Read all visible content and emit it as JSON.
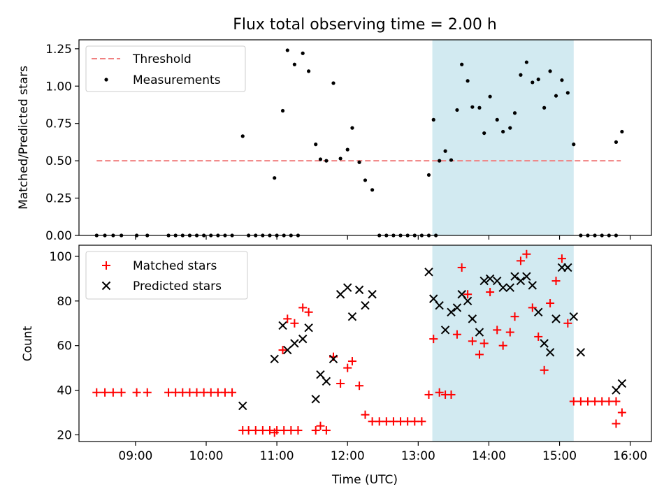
{
  "chart_data": [
    {
      "type": "scatter",
      "title": "Flux total observing time = 2.00 h",
      "xlabel": "",
      "ylabel": "Matched/Predicted stars",
      "xlim": [
        "08:12",
        "16:18"
      ],
      "ylim": [
        0,
        1.31
      ],
      "yticks": [
        "0.00",
        "0.25",
        "0.50",
        "0.75",
        "1.00",
        "1.25"
      ],
      "grid": false,
      "legend": "top-left",
      "highlight_span": {
        "start": "13:12",
        "end": "15:12",
        "color": "#add8e6"
      },
      "threshold": {
        "name": "Threshold",
        "value": 0.5,
        "start": "08:27",
        "end": "15:52",
        "color": "#f08080",
        "style": "dashed"
      },
      "series": [
        {
          "name": "Measurements",
          "color": "#000000",
          "marker": "dot",
          "points": [
            [
              "08:27",
              0
            ],
            [
              "08:34",
              0
            ],
            [
              "08:41",
              0
            ],
            [
              "08:48",
              0
            ],
            [
              "09:01",
              0
            ],
            [
              "09:10",
              0
            ],
            [
              "09:28",
              0
            ],
            [
              "09:34",
              0
            ],
            [
              "09:40",
              0
            ],
            [
              "09:46",
              0
            ],
            [
              "09:52",
              0
            ],
            [
              "09:58",
              0
            ],
            [
              "10:04",
              0
            ],
            [
              "10:10",
              0
            ],
            [
              "10:16",
              0
            ],
            [
              "10:22",
              0
            ],
            [
              "10:31",
              0.665
            ],
            [
              "10:36",
              0
            ],
            [
              "10:42",
              0
            ],
            [
              "10:48",
              0
            ],
            [
              "10:54",
              0
            ],
            [
              "11:00",
              0
            ],
            [
              "11:06",
              0
            ],
            [
              "11:12",
              0
            ],
            [
              "11:18",
              0
            ],
            [
              "10:58",
              0.385
            ],
            [
              "11:05",
              0.835
            ],
            [
              "11:09",
              1.24
            ],
            [
              "11:15",
              1.145
            ],
            [
              "11:22",
              1.22
            ],
            [
              "11:27",
              1.1
            ],
            [
              "11:33",
              0.61
            ],
            [
              "11:37",
              0.51
            ],
            [
              "11:42",
              0.5
            ],
            [
              "11:48",
              1.02
            ],
            [
              "11:54",
              0.515
            ],
            [
              "12:00",
              0.575
            ],
            [
              "12:04",
              0.72
            ],
            [
              "12:10",
              0.49
            ],
            [
              "12:15",
              0.37
            ],
            [
              "12:21",
              0.305
            ],
            [
              "12:27",
              0
            ],
            [
              "12:33",
              0
            ],
            [
              "12:39",
              0
            ],
            [
              "12:45",
              0
            ],
            [
              "12:51",
              0
            ],
            [
              "12:57",
              0
            ],
            [
              "13:03",
              0
            ],
            [
              "13:09",
              0
            ],
            [
              "13:15",
              0
            ],
            [
              "13:09",
              0.405
            ],
            [
              "13:13",
              0.775
            ],
            [
              "13:18",
              0.5
            ],
            [
              "13:23",
              0.565
            ],
            [
              "13:28",
              0.505
            ],
            [
              "13:33",
              0.84
            ],
            [
              "13:37",
              1.145
            ],
            [
              "13:42",
              1.035
            ],
            [
              "13:46",
              0.86
            ],
            [
              "13:52",
              0.855
            ],
            [
              "13:56",
              0.685
            ],
            [
              "14:01",
              0.93
            ],
            [
              "14:07",
              0.775
            ],
            [
              "14:12",
              0.695
            ],
            [
              "14:18",
              0.72
            ],
            [
              "14:22",
              0.82
            ],
            [
              "14:27",
              1.075
            ],
            [
              "14:32",
              1.16
            ],
            [
              "14:37",
              1.025
            ],
            [
              "14:42",
              1.045
            ],
            [
              "14:47",
              0.855
            ],
            [
              "14:52",
              1.1
            ],
            [
              "14:57",
              0.935
            ],
            [
              "15:02",
              1.04
            ],
            [
              "15:07",
              0.955
            ],
            [
              "15:12",
              0.61
            ],
            [
              "15:18",
              0
            ],
            [
              "15:24",
              0
            ],
            [
              "15:30",
              0
            ],
            [
              "15:36",
              0
            ],
            [
              "15:42",
              0
            ],
            [
              "15:48",
              0
            ],
            [
              "15:48",
              0.625
            ],
            [
              "15:53",
              0.695
            ]
          ]
        }
      ]
    },
    {
      "type": "scatter",
      "title": "",
      "xlabel": "Time (UTC)",
      "ylabel": "Count",
      "xlim": [
        "08:12",
        "16:18"
      ],
      "ylim": [
        17,
        105
      ],
      "xticks": [
        "09:00",
        "10:00",
        "11:00",
        "12:00",
        "13:00",
        "14:00",
        "15:00",
        "16:00"
      ],
      "yticks": [
        "20",
        "40",
        "60",
        "80",
        "100"
      ],
      "grid": false,
      "legend": "top-left",
      "highlight_span": {
        "start": "13:12",
        "end": "15:12",
        "color": "#add8e6"
      },
      "series": [
        {
          "name": "Matched stars",
          "color": "#ff0000",
          "marker": "plus",
          "points": [
            [
              "08:27",
              39
            ],
            [
              "08:34",
              39
            ],
            [
              "08:41",
              39
            ],
            [
              "08:48",
              39
            ],
            [
              "09:01",
              39
            ],
            [
              "09:10",
              39
            ],
            [
              "09:28",
              39
            ],
            [
              "09:34",
              39
            ],
            [
              "09:40",
              39
            ],
            [
              "09:46",
              39
            ],
            [
              "09:52",
              39
            ],
            [
              "09:58",
              39
            ],
            [
              "10:04",
              39
            ],
            [
              "10:10",
              39
            ],
            [
              "10:16",
              39
            ],
            [
              "10:22",
              39
            ],
            [
              "10:31",
              22
            ],
            [
              "10:36",
              22
            ],
            [
              "10:42",
              22
            ],
            [
              "10:48",
              22
            ],
            [
              "10:54",
              22
            ],
            [
              "11:00",
              22
            ],
            [
              "11:06",
              22
            ],
            [
              "11:12",
              22
            ],
            [
              "11:18",
              22
            ],
            [
              "10:58",
              21
            ],
            [
              "11:05",
              58
            ],
            [
              "11:09",
              72
            ],
            [
              "11:15",
              70
            ],
            [
              "11:22",
              77
            ],
            [
              "11:27",
              75
            ],
            [
              "11:33",
              22
            ],
            [
              "11:37",
              24
            ],
            [
              "11:42",
              22
            ],
            [
              "11:48",
              55
            ],
            [
              "11:54",
              43
            ],
            [
              "12:00",
              50
            ],
            [
              "12:04",
              53
            ],
            [
              "12:10",
              42
            ],
            [
              "12:15",
              29
            ],
            [
              "12:21",
              26
            ],
            [
              "12:27",
              26
            ],
            [
              "12:33",
              26
            ],
            [
              "12:39",
              26
            ],
            [
              "12:45",
              26
            ],
            [
              "12:51",
              26
            ],
            [
              "12:57",
              26
            ],
            [
              "13:03",
              26
            ],
            [
              "13:09",
              38
            ],
            [
              "13:13",
              63
            ],
            [
              "13:18",
              39
            ],
            [
              "13:23",
              38
            ],
            [
              "13:28",
              38
            ],
            [
              "13:33",
              65
            ],
            [
              "13:37",
              95
            ],
            [
              "13:42",
              83
            ],
            [
              "13:46",
              62
            ],
            [
              "13:52",
              56
            ],
            [
              "13:56",
              61
            ],
            [
              "14:01",
              84
            ],
            [
              "14:07",
              67
            ],
            [
              "14:12",
              60
            ],
            [
              "14:18",
              66
            ],
            [
              "14:22",
              73
            ],
            [
              "14:27",
              98
            ],
            [
              "14:32",
              101
            ],
            [
              "14:37",
              77
            ],
            [
              "14:42",
              64
            ],
            [
              "14:47",
              49
            ],
            [
              "14:52",
              79
            ],
            [
              "14:57",
              89
            ],
            [
              "15:02",
              99
            ],
            [
              "15:07",
              70
            ],
            [
              "15:12",
              35
            ],
            [
              "15:18",
              35
            ],
            [
              "15:24",
              35
            ],
            [
              "15:30",
              35
            ],
            [
              "15:36",
              35
            ],
            [
              "15:42",
              35
            ],
            [
              "15:48",
              35
            ],
            [
              "15:48",
              25
            ],
            [
              "15:53",
              30
            ]
          ]
        },
        {
          "name": "Predicted stars",
          "color": "#000000",
          "marker": "x",
          "points": [
            [
              "10:31",
              33
            ],
            [
              "10:58",
              54
            ],
            [
              "11:05",
              69
            ],
            [
              "11:09",
              58
            ],
            [
              "11:15",
              61
            ],
            [
              "11:22",
              63
            ],
            [
              "11:27",
              68
            ],
            [
              "11:33",
              36
            ],
            [
              "11:37",
              47
            ],
            [
              "11:42",
              44
            ],
            [
              "11:48",
              54
            ],
            [
              "11:54",
              83
            ],
            [
              "12:00",
              86
            ],
            [
              "12:04",
              73
            ],
            [
              "12:10",
              85
            ],
            [
              "12:15",
              78
            ],
            [
              "12:21",
              83
            ],
            [
              "13:09",
              93
            ],
            [
              "13:13",
              81
            ],
            [
              "13:18",
              78
            ],
            [
              "13:23",
              67
            ],
            [
              "13:28",
              75
            ],
            [
              "13:33",
              77
            ],
            [
              "13:37",
              83
            ],
            [
              "13:42",
              80
            ],
            [
              "13:46",
              72
            ],
            [
              "13:52",
              66
            ],
            [
              "13:56",
              89
            ],
            [
              "14:01",
              90
            ],
            [
              "14:07",
              89
            ],
            [
              "14:12",
              86
            ],
            [
              "14:18",
              86
            ],
            [
              "14:22",
              91
            ],
            [
              "14:27",
              89
            ],
            [
              "14:32",
              91
            ],
            [
              "14:37",
              87
            ],
            [
              "14:42",
              75
            ],
            [
              "14:47",
              61
            ],
            [
              "14:52",
              57
            ],
            [
              "14:57",
              72
            ],
            [
              "15:02",
              95
            ],
            [
              "15:07",
              95
            ],
            [
              "15:12",
              73
            ],
            [
              "15:18",
              57
            ],
            [
              "15:48",
              40
            ],
            [
              "15:53",
              43
            ]
          ]
        }
      ]
    }
  ]
}
